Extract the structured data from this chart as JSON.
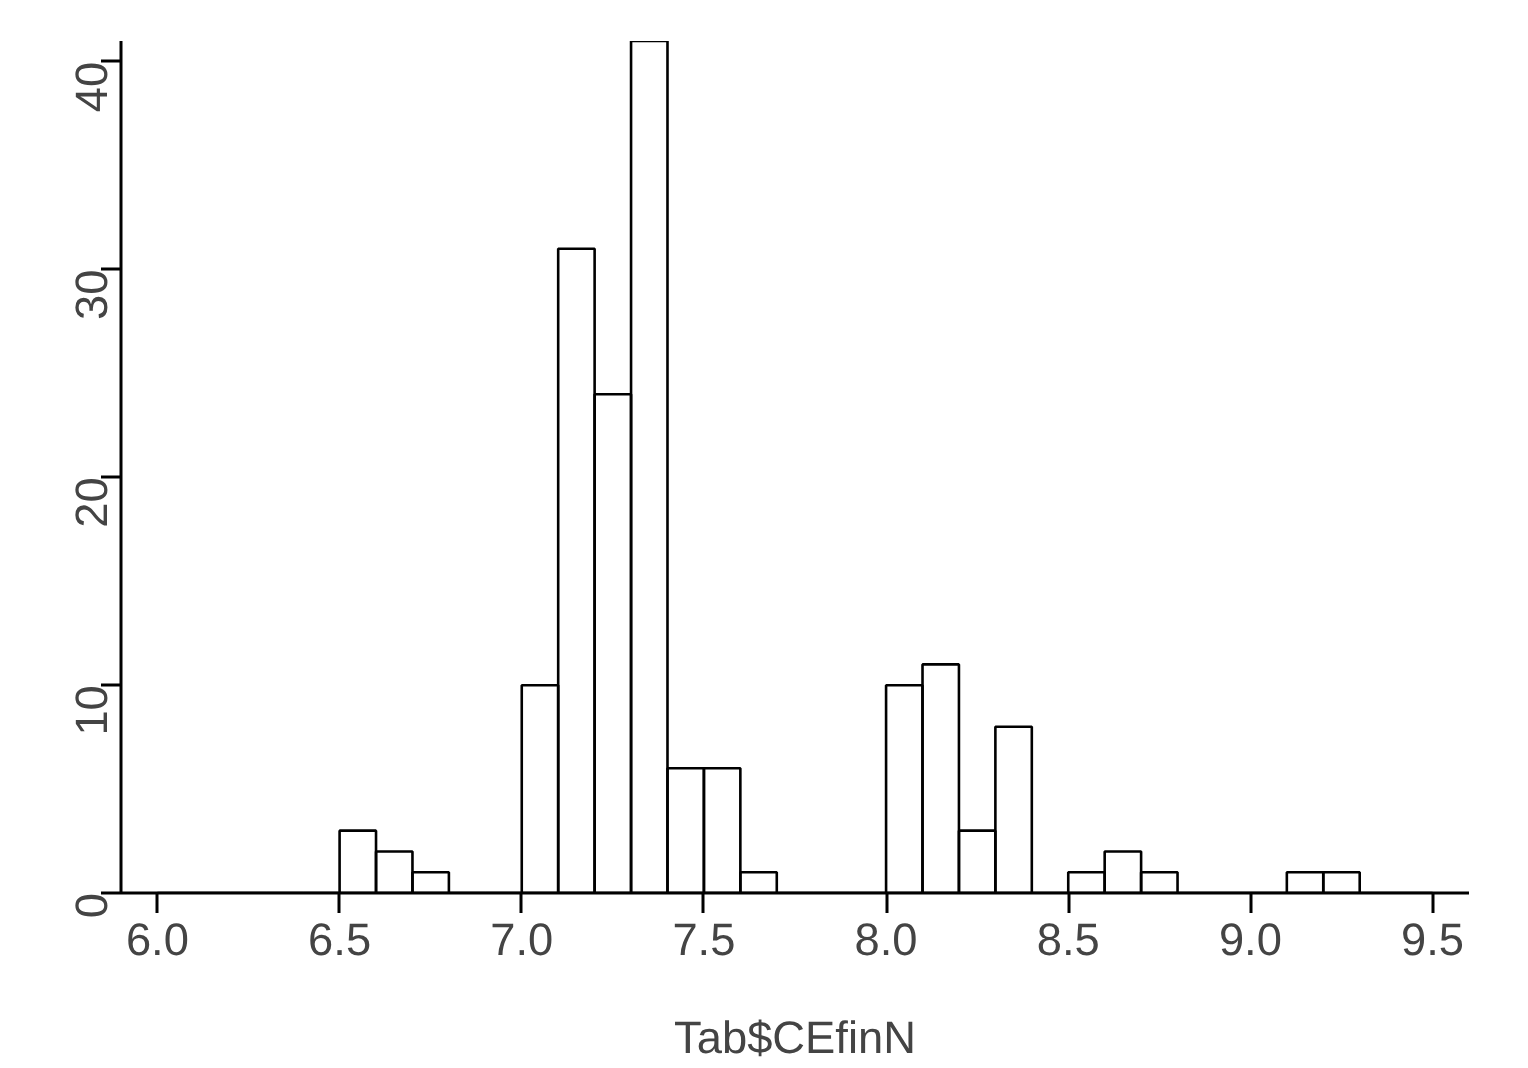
{
  "chart_data": {
    "type": "histogram",
    "xlabel": "Tab$CEfinN",
    "bins": [
      6.0,
      6.1,
      6.2,
      6.3,
      6.4,
      6.5,
      6.6,
      6.7,
      6.8,
      6.9,
      7.0,
      7.1,
      7.2,
      7.3,
      7.4,
      7.5,
      7.6,
      7.7,
      7.8,
      7.9,
      8.0,
      8.1,
      8.2,
      8.3,
      8.4,
      8.5,
      8.6,
      8.7,
      8.8,
      8.9,
      9.0,
      9.1,
      9.2,
      9.3,
      9.4,
      9.5
    ],
    "values": [
      0,
      0,
      0,
      0,
      0,
      3,
      2,
      1,
      0,
      0,
      10,
      31,
      24,
      41,
      6,
      6,
      1,
      0,
      0,
      0,
      10,
      11,
      3,
      8,
      0,
      1,
      2,
      1,
      0,
      0,
      0,
      1,
      1,
      0,
      0
    ],
    "color": "#000000",
    "xlim": [
      5.9,
      9.6
    ],
    "ylim": [
      0,
      41
    ],
    "xticks": [
      {
        "value": 6.0,
        "label": "6.0"
      },
      {
        "value": 6.5,
        "label": "6.5"
      },
      {
        "value": 7.0,
        "label": "7.0"
      },
      {
        "value": 7.5,
        "label": "7.5"
      },
      {
        "value": 8.0,
        "label": "8.0"
      },
      {
        "value": 8.5,
        "label": "8.5"
      },
      {
        "value": 9.0,
        "label": "9.0"
      },
      {
        "value": 9.5,
        "label": "9.5"
      }
    ],
    "yticks": [
      0,
      10,
      20,
      30,
      40
    ],
    "grid": false
  }
}
